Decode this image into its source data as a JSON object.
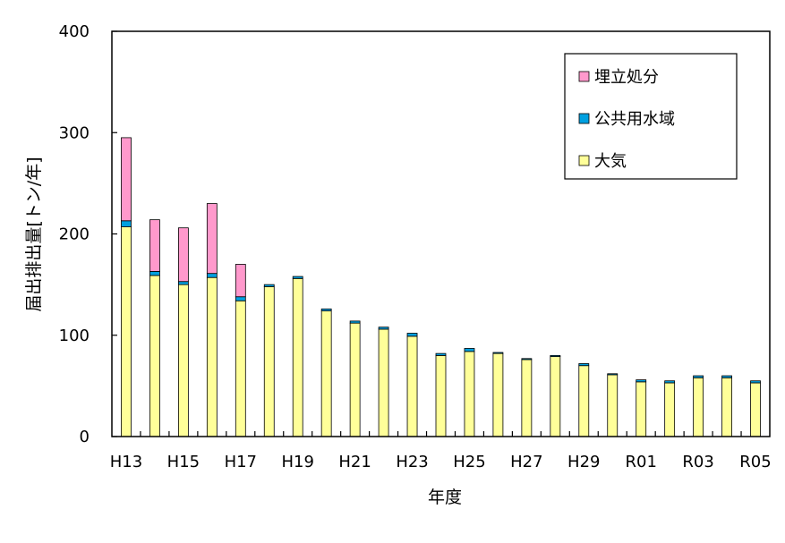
{
  "chart_data": {
    "type": "bar",
    "stacked": true,
    "title": "",
    "xlabel": "年度",
    "ylabel": "届出排出量[トン/年]",
    "ylim": [
      0,
      400
    ],
    "yticks": [
      "0",
      "100",
      "200",
      "300",
      "400"
    ],
    "grid": false,
    "legend_position": "top-right",
    "categories": [
      "H13",
      "H14",
      "H15",
      "H16",
      "H17",
      "H18",
      "H19",
      "H20",
      "H21",
      "H22",
      "H23",
      "H24",
      "H25",
      "H26",
      "H27",
      "H28",
      "H29",
      "H30",
      "R01",
      "R02",
      "R03",
      "R04",
      "R05"
    ],
    "tick_labels": [
      "H13",
      "",
      "H15",
      "",
      "H17",
      "",
      "H19",
      "",
      "H21",
      "",
      "H23",
      "",
      "H25",
      "",
      "H27",
      "",
      "H29",
      "",
      "R01",
      "",
      "R03",
      "",
      "R05"
    ],
    "series": [
      {
        "name": "大気",
        "color": "#ffff99",
        "values": [
          207,
          159,
          150,
          157,
          134,
          148,
          156,
          124,
          112,
          106,
          99,
          80,
          84,
          82,
          76,
          79,
          70,
          61,
          54,
          53,
          58,
          58,
          53
        ]
      },
      {
        "name": "公共用水域",
        "color": "#00a0e0",
        "values": [
          6,
          4,
          3,
          4,
          4,
          2,
          2,
          2,
          2,
          2,
          3,
          2,
          3,
          1,
          1,
          1,
          2,
          1,
          2,
          2,
          2,
          2,
          2
        ]
      },
      {
        "name": "埋立処分",
        "color": "#ff99cc",
        "values": [
          82,
          51,
          53,
          69,
          32,
          0,
          0,
          0,
          0,
          0,
          0,
          0,
          0,
          0,
          0,
          0,
          0,
          0,
          0,
          0,
          0,
          0,
          0
        ]
      }
    ],
    "legend_order": [
      "埋立処分",
      "公共用水域",
      "大気"
    ]
  }
}
